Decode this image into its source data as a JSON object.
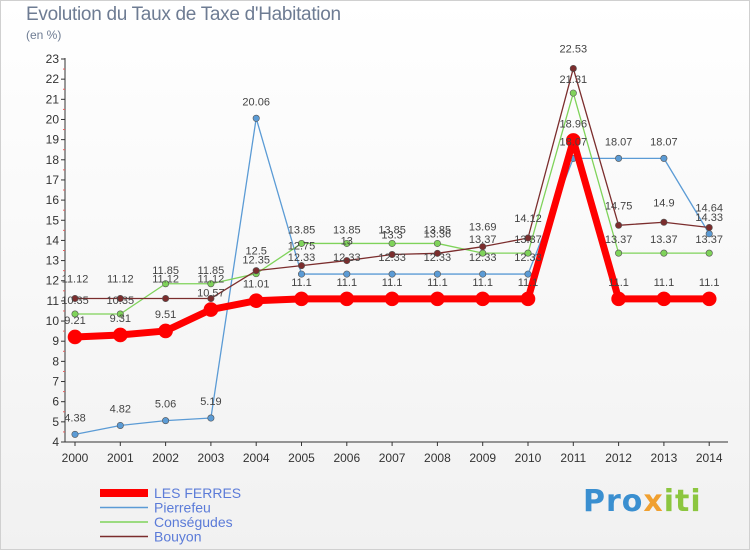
{
  "title": "Evolution du Taux de Taxe d'Habitation",
  "unit": "(en %)",
  "logo": {
    "p1": "Pro",
    "p2": "x",
    "p3": "iti"
  },
  "chart_data": {
    "type": "line",
    "x": [
      "2000",
      "2001",
      "2002",
      "2003",
      "2004",
      "2005",
      "2006",
      "2007",
      "2008",
      "2009",
      "2010",
      "2011",
      "2012",
      "2013",
      "2014"
    ],
    "ylim": [
      4,
      23
    ],
    "yticks": [
      4,
      5,
      6,
      7,
      8,
      9,
      10,
      11,
      12,
      13,
      14,
      15,
      16,
      17,
      18,
      19,
      20,
      21,
      22,
      23
    ],
    "grid": false,
    "legend_position": "bottom-left",
    "series": [
      {
        "name": "LES FERRES",
        "color": "#ff0000",
        "width": 7,
        "values": [
          9.21,
          9.31,
          9.51,
          10.57,
          11.01,
          11.1,
          11.1,
          11.1,
          11.1,
          11.1,
          11.1,
          18.96,
          11.1,
          11.1,
          11.1
        ],
        "labels": [
          "9.21",
          "9.31",
          "9.51",
          "10.57",
          "11.01",
          "11.1",
          "11.1",
          "11.1",
          "11.1",
          "11.1",
          "11.1",
          "18.96",
          "11.1",
          "11.1",
          "11.1"
        ]
      },
      {
        "name": "Pierrefeu",
        "color": "#5b9bd5",
        "width": 1.3,
        "values": [
          4.38,
          4.82,
          5.06,
          5.19,
          20.06,
          12.33,
          12.33,
          12.33,
          12.33,
          12.33,
          12.33,
          18.07,
          18.07,
          18.07,
          14.33
        ],
        "labels": [
          "4.38",
          "4.82",
          "5.06",
          "5.19",
          "20.06",
          "12.33",
          "12.33",
          "12.33",
          "12.33",
          "12.33",
          "12.33",
          "18.07",
          "18.07",
          "18.07",
          "14.33"
        ]
      },
      {
        "name": "Conségudes",
        "color": "#7fd35a",
        "width": 1.3,
        "values": [
          10.35,
          10.35,
          11.85,
          11.85,
          12.35,
          13.85,
          13.85,
          13.85,
          13.85,
          13.37,
          13.37,
          21.31,
          13.37,
          13.37,
          13.37
        ],
        "labels": [
          "10.35",
          "10.35",
          "11.85",
          "11.85",
          "12.35",
          "13.85",
          "13.85",
          "13.85",
          "13.85",
          "13.37",
          "13.37",
          "21.31",
          "13.37",
          "13.37",
          "13.37"
        ]
      },
      {
        "name": "Bouyon",
        "color": "#7b2d2d",
        "width": 1.3,
        "values": [
          11.12,
          11.12,
          11.12,
          11.12,
          12.5,
          12.75,
          13,
          13.3,
          13.36,
          13.69,
          14.12,
          22.53,
          14.75,
          14.9,
          14.64
        ],
        "labels": [
          "11.12",
          "11.12",
          "11.12",
          "11.12",
          "12.5",
          "12.75",
          "13",
          "13.3",
          "13.36",
          "13.69",
          "14.12",
          "22.53",
          "14.75",
          "14.9",
          "14.64"
        ]
      }
    ]
  }
}
